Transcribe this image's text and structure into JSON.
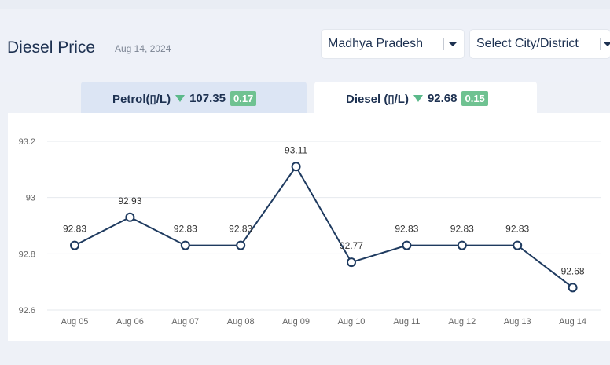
{
  "page": {
    "title": "Diesel Price",
    "date": "Aug 14, 2024"
  },
  "filters": {
    "state": "Madhya Pradesh",
    "city_placeholder": "Select City/District"
  },
  "tabs": [
    {
      "label": "Petrol(▯/L)",
      "price": "107.35",
      "change": "0.17",
      "active": false
    },
    {
      "label": "Diesel (▯/L)",
      "price": "92.68",
      "change": "0.15",
      "active": true
    }
  ],
  "colors": {
    "line": "#1e3a5f",
    "badge": "#6fc291",
    "accent_down": "#5bb98a"
  },
  "chart_data": {
    "type": "line",
    "categories": [
      "Aug 05",
      "Aug 06",
      "Aug 07",
      "Aug 08",
      "Aug 09",
      "Aug 10",
      "Aug 11",
      "Aug 12",
      "Aug 13",
      "Aug 14"
    ],
    "values": [
      92.83,
      92.93,
      92.83,
      92.83,
      93.11,
      92.77,
      92.83,
      92.83,
      92.83,
      92.68
    ],
    "value_labels": [
      "92.83",
      "92.93",
      "92.83",
      "92.83",
      "93.11",
      "92.77",
      "92.83",
      "92.83",
      "92.83",
      "92.68"
    ],
    "yticks": [
      "92.6",
      "92.8",
      "93",
      "93.2"
    ],
    "ylim": [
      92.6,
      93.2
    ],
    "grid": true
  }
}
